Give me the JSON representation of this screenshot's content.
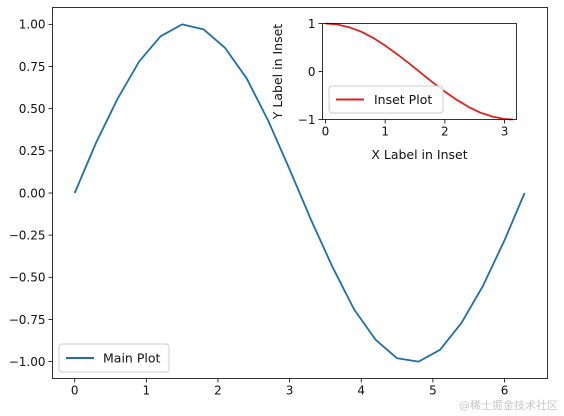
{
  "chart_data": [
    {
      "id": "main",
      "type": "line",
      "title": "",
      "xlabel": "",
      "ylabel": "",
      "xlim": [
        -0.31,
        6.6
      ],
      "ylim": [
        -1.1,
        1.1
      ],
      "xticks": [
        0,
        1,
        2,
        3,
        4,
        5,
        6
      ],
      "xtick_labels": [
        "0",
        "1",
        "2",
        "3",
        "4",
        "5",
        "6"
      ],
      "yticks": [
        1.0,
        0.75,
        0.5,
        0.25,
        0.0,
        -0.25,
        -0.5,
        -0.75,
        -1.0
      ],
      "ytick_labels": [
        "1.00",
        "0.75",
        "0.50",
        "0.25",
        "0.00",
        "−0.25",
        "−0.50",
        "−0.75",
        "−1.00"
      ],
      "grid": false,
      "legend_position": "lower-left",
      "series": [
        {
          "name": "Main Plot",
          "color": "#1f6fa8",
          "x": [
            0,
            0.3,
            0.6,
            0.9,
            1.2,
            1.5,
            1.8,
            2.1,
            2.4,
            2.7,
            3.0,
            3.3,
            3.6,
            3.9,
            4.2,
            4.5,
            4.8,
            5.1,
            5.4,
            5.7,
            6.0,
            6.28
          ],
          "y": [
            0.0,
            0.3,
            0.56,
            0.78,
            0.93,
            1.0,
            0.97,
            0.86,
            0.68,
            0.43,
            0.14,
            -0.16,
            -0.44,
            -0.69,
            -0.87,
            -0.98,
            -1.0,
            -0.93,
            -0.77,
            -0.55,
            -0.28,
            0.0
          ]
        }
      ]
    },
    {
      "id": "inset",
      "type": "line",
      "title": "",
      "xlabel": "X Label in Inset",
      "ylabel": "Y Label in Inset",
      "xlim": [
        -0.05,
        3.2
      ],
      "ylim": [
        -1.0,
        1.0
      ],
      "xticks": [
        0,
        1,
        2,
        3
      ],
      "xtick_labels": [
        "0",
        "1",
        "2",
        "3"
      ],
      "yticks": [
        1,
        0,
        -1
      ],
      "ytick_labels": [
        "1",
        "0",
        "−1"
      ],
      "grid": false,
      "legend_position": "lower-left",
      "series": [
        {
          "name": "Inset Plot",
          "color": "#e0211d",
          "x": [
            0,
            0.2,
            0.4,
            0.6,
            0.8,
            1.0,
            1.2,
            1.4,
            1.6,
            1.8,
            2.0,
            2.2,
            2.4,
            2.6,
            2.8,
            3.0,
            3.14
          ],
          "y": [
            1.0,
            0.98,
            0.92,
            0.83,
            0.7,
            0.54,
            0.36,
            0.17,
            -0.03,
            -0.23,
            -0.42,
            -0.59,
            -0.74,
            -0.86,
            -0.94,
            -0.99,
            -1.0
          ]
        }
      ]
    }
  ],
  "watermark": "@稀土掘金技术社区"
}
